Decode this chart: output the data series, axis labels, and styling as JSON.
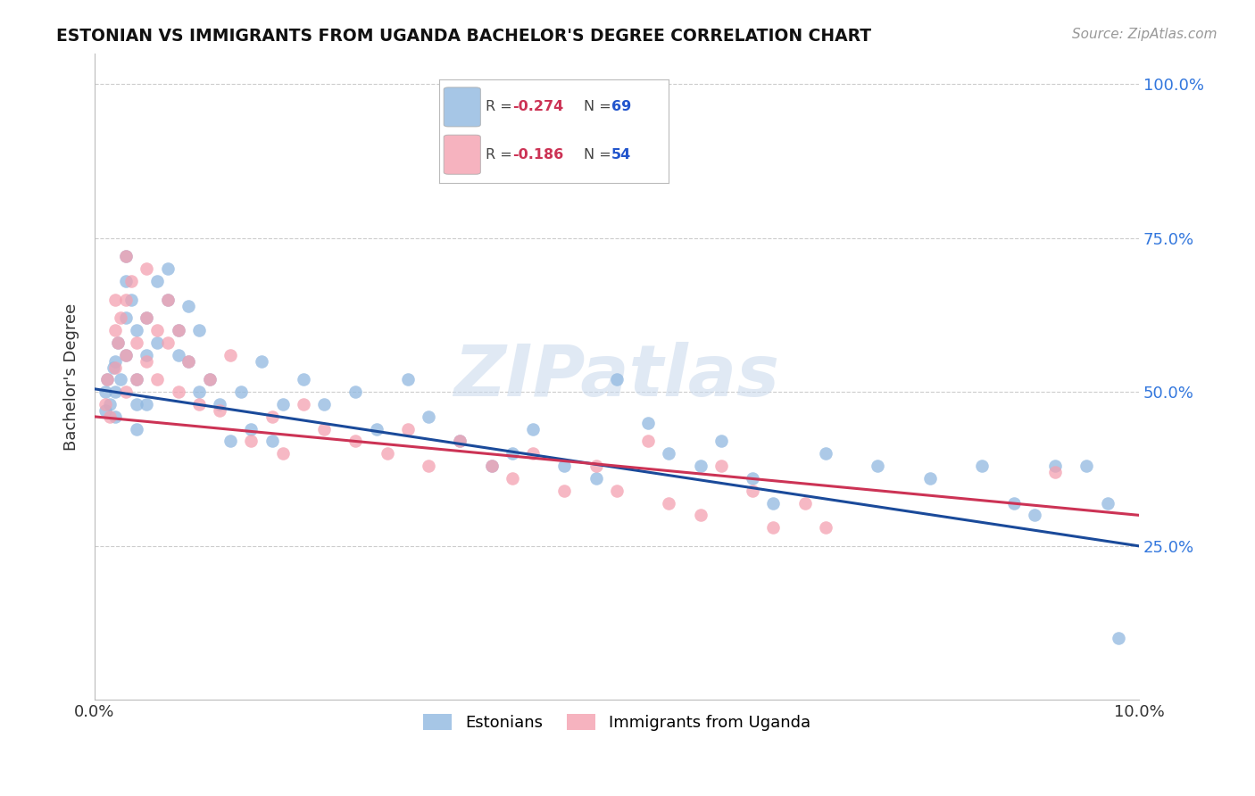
{
  "title": "ESTONIAN VS IMMIGRANTS FROM UGANDA BACHELOR'S DEGREE CORRELATION CHART",
  "source": "Source: ZipAtlas.com",
  "ylabel": "Bachelor's Degree",
  "ytick_vals": [
    0.25,
    0.5,
    0.75,
    1.0
  ],
  "ytick_labels": [
    "25.0%",
    "50.0%",
    "75.0%",
    "100.0%"
  ],
  "xtick_vals": [
    0.0,
    0.1
  ],
  "xtick_labels": [
    "0.0%",
    "10.0%"
  ],
  "legend1_label": "Estonians",
  "legend2_label": "Immigrants from Uganda",
  "legend1_r": "-0.274",
  "legend1_n": "69",
  "legend2_r": "-0.186",
  "legend2_n": "54",
  "blue_color": "#90B8E0",
  "pink_color": "#F4A0B0",
  "line_blue": "#1A4A9A",
  "line_pink": "#CC3355",
  "r_color": "#CC3355",
  "n_color": "#2255CC",
  "watermark": "ZIPatlas",
  "xlim": [
    0.0,
    0.1
  ],
  "ylim": [
    0.0,
    1.05
  ],
  "blue_x": [
    0.001,
    0.001,
    0.0012,
    0.0015,
    0.0018,
    0.002,
    0.002,
    0.002,
    0.0022,
    0.0025,
    0.003,
    0.003,
    0.003,
    0.003,
    0.0035,
    0.004,
    0.004,
    0.004,
    0.004,
    0.005,
    0.005,
    0.005,
    0.006,
    0.006,
    0.007,
    0.007,
    0.008,
    0.008,
    0.009,
    0.009,
    0.01,
    0.01,
    0.011,
    0.012,
    0.013,
    0.014,
    0.015,
    0.016,
    0.017,
    0.018,
    0.02,
    0.022,
    0.025,
    0.027,
    0.03,
    0.032,
    0.035,
    0.038,
    0.04,
    0.042,
    0.045,
    0.048,
    0.05,
    0.053,
    0.055,
    0.058,
    0.06,
    0.063,
    0.065,
    0.07,
    0.075,
    0.08,
    0.085,
    0.088,
    0.09,
    0.092,
    0.095,
    0.097,
    0.098
  ],
  "blue_y": [
    0.5,
    0.47,
    0.52,
    0.48,
    0.54,
    0.5,
    0.46,
    0.55,
    0.58,
    0.52,
    0.68,
    0.72,
    0.62,
    0.56,
    0.65,
    0.6,
    0.52,
    0.48,
    0.44,
    0.62,
    0.56,
    0.48,
    0.68,
    0.58,
    0.7,
    0.65,
    0.6,
    0.56,
    0.64,
    0.55,
    0.6,
    0.5,
    0.52,
    0.48,
    0.42,
    0.5,
    0.44,
    0.55,
    0.42,
    0.48,
    0.52,
    0.48,
    0.5,
    0.44,
    0.52,
    0.46,
    0.42,
    0.38,
    0.4,
    0.44,
    0.38,
    0.36,
    0.52,
    0.45,
    0.4,
    0.38,
    0.42,
    0.36,
    0.32,
    0.4,
    0.38,
    0.36,
    0.38,
    0.32,
    0.3,
    0.38,
    0.38,
    0.32,
    0.1
  ],
  "pink_x": [
    0.001,
    0.0012,
    0.0015,
    0.002,
    0.002,
    0.002,
    0.0022,
    0.0025,
    0.003,
    0.003,
    0.003,
    0.003,
    0.0035,
    0.004,
    0.004,
    0.005,
    0.005,
    0.005,
    0.006,
    0.006,
    0.007,
    0.007,
    0.008,
    0.008,
    0.009,
    0.01,
    0.011,
    0.012,
    0.013,
    0.015,
    0.017,
    0.018,
    0.02,
    0.022,
    0.025,
    0.028,
    0.03,
    0.032,
    0.035,
    0.038,
    0.04,
    0.042,
    0.045,
    0.048,
    0.05,
    0.053,
    0.055,
    0.058,
    0.06,
    0.063,
    0.065,
    0.068,
    0.07,
    0.092
  ],
  "pink_y": [
    0.48,
    0.52,
    0.46,
    0.6,
    0.65,
    0.54,
    0.58,
    0.62,
    0.72,
    0.65,
    0.56,
    0.5,
    0.68,
    0.58,
    0.52,
    0.7,
    0.62,
    0.55,
    0.6,
    0.52,
    0.65,
    0.58,
    0.6,
    0.5,
    0.55,
    0.48,
    0.52,
    0.47,
    0.56,
    0.42,
    0.46,
    0.4,
    0.48,
    0.44,
    0.42,
    0.4,
    0.44,
    0.38,
    0.42,
    0.38,
    0.36,
    0.4,
    0.34,
    0.38,
    0.34,
    0.42,
    0.32,
    0.3,
    0.38,
    0.34,
    0.28,
    0.32,
    0.28,
    0.37
  ]
}
